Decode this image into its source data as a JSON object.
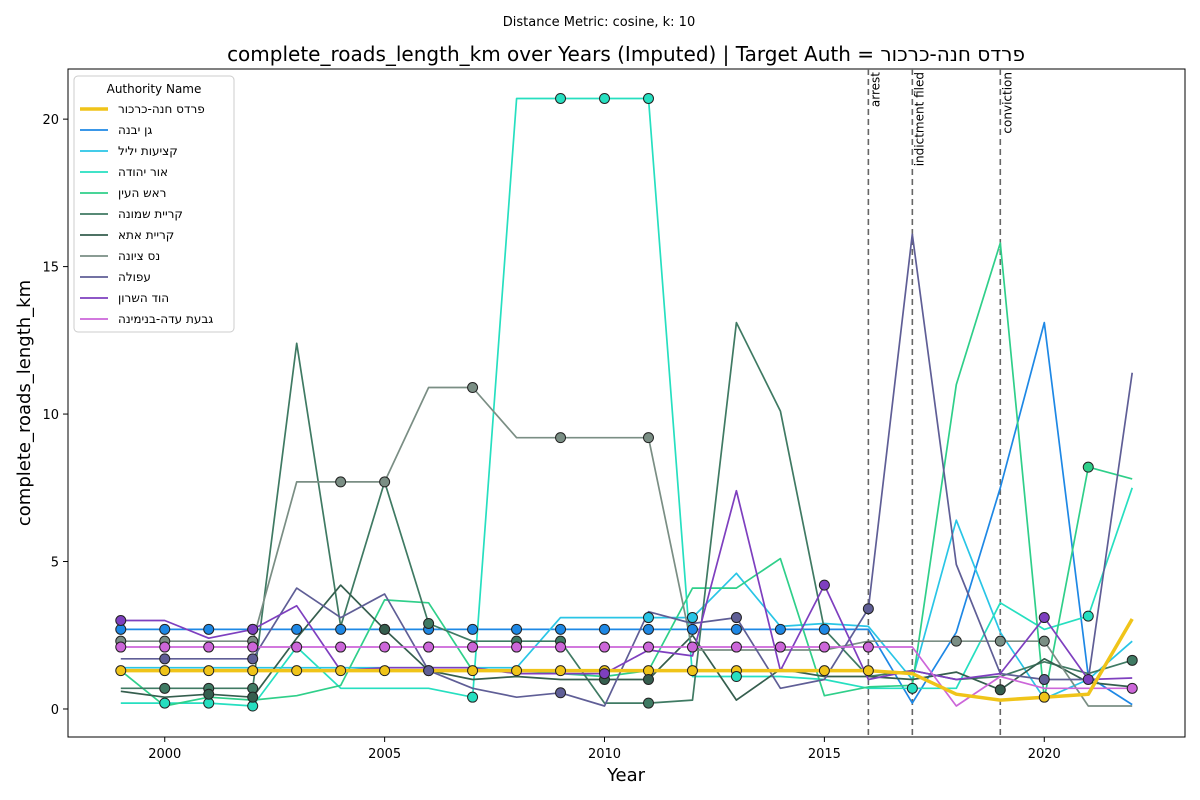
{
  "suptitle": "Distance Metric: cosine, k: 10",
  "chart_data": {
    "type": "line",
    "title": "complete_roads_length_km over Years (Imputed) | Target Auth = פרדס חנה-כרכור",
    "xlabel": "Year",
    "ylabel": "complete_roads_length_km",
    "xlim": [
      1997.8,
      2023.2
    ],
    "ylim": [
      -0.95,
      21.7
    ],
    "xticks": [
      2000,
      2005,
      2010,
      2015,
      2020
    ],
    "yticks": [
      0,
      5,
      10,
      15,
      20
    ],
    "x": [
      1999,
      2000,
      2001,
      2002,
      2003,
      2004,
      2005,
      2006,
      2007,
      2008,
      2009,
      2010,
      2011,
      2012,
      2013,
      2014,
      2015,
      2016,
      2017,
      2018,
      2019,
      2020,
      2021,
      2022
    ],
    "legend_title": "Authority Name",
    "legend_position": "upper left",
    "grid": false,
    "events": [
      {
        "x": 2016,
        "label": "arrest"
      },
      {
        "x": 2017,
        "label": "indictment filed"
      },
      {
        "x": 2019,
        "label": "conviction"
      }
    ],
    "series": [
      {
        "name": "פרדס חנה-כרכור",
        "color": "#f0c419",
        "target": true,
        "values": [
          1.3,
          1.3,
          1.3,
          1.3,
          1.3,
          1.3,
          1.3,
          1.3,
          1.3,
          1.3,
          1.3,
          1.3,
          1.3,
          1.3,
          1.3,
          1.3,
          1.3,
          1.3,
          1.2,
          0.5,
          0.3,
          0.4,
          0.5,
          3.05
        ],
        "markers": [
          1999,
          2000,
          2001,
          2002,
          2003,
          2004,
          2005,
          2006,
          2007,
          2008,
          2009,
          2010,
          2011,
          2012,
          2013,
          2015,
          2016,
          2020
        ]
      },
      {
        "name": "גן יבנה",
        "color": "#1e88e5",
        "values": [
          2.7,
          2.7,
          2.7,
          2.7,
          2.7,
          2.7,
          2.7,
          2.7,
          2.7,
          2.7,
          2.7,
          2.7,
          2.7,
          2.7,
          2.7,
          2.7,
          2.7,
          2.7,
          0.2,
          2.6,
          7.5,
          13.1,
          1.1,
          0.15
        ],
        "markers": [
          1999,
          2000,
          2001,
          2002,
          2003,
          2004,
          2005,
          2006,
          2007,
          2008,
          2009,
          2010,
          2011,
          2012,
          2013,
          2014,
          2015
        ]
      },
      {
        "name": "קציעות יליל",
        "color": "#29c5e6",
        "values": [
          1.4,
          1.4,
          1.4,
          1.4,
          1.4,
          1.4,
          1.4,
          1.4,
          1.4,
          1.4,
          3.1,
          3.1,
          3.1,
          3.1,
          4.6,
          2.8,
          2.9,
          2.8,
          1.0,
          6.4,
          2.6,
          0.35,
          1.0,
          2.3
        ],
        "markers": [
          2011,
          2012
        ]
      },
      {
        "name": "אור יהודה",
        "color": "#26dfc0",
        "values": [
          0.2,
          0.2,
          0.2,
          0.1,
          2.1,
          0.7,
          0.7,
          0.7,
          0.4,
          20.7,
          20.7,
          20.7,
          20.7,
          1.1,
          1.1,
          1.1,
          1.0,
          0.7,
          0.7,
          0.7,
          3.6,
          2.7,
          3.15,
          7.5
        ],
        "markers": [
          2000,
          2001,
          2002,
          2007,
          2009,
          2010,
          2011,
          2013,
          2017,
          2021
        ]
      },
      {
        "name": "ראש העין",
        "color": "#2fcf8a",
        "values": [
          1.3,
          0.1,
          0.4,
          0.3,
          0.45,
          0.8,
          3.7,
          3.6,
          1.3,
          1.3,
          1.2,
          1.1,
          1.3,
          4.1,
          4.1,
          5.1,
          0.45,
          0.75,
          0.8,
          11.0,
          15.8,
          0.35,
          8.2,
          7.8
        ],
        "markers": [
          2021
        ]
      },
      {
        "name": "קריית שמונה",
        "color": "#3f7a63",
        "values": [
          0.7,
          0.7,
          0.7,
          0.7,
          12.4,
          2.8,
          7.7,
          2.9,
          2.3,
          2.3,
          2.3,
          0.2,
          0.2,
          0.3,
          13.1,
          10.1,
          2.7,
          1.1,
          1.3,
          1.0,
          1.1,
          1.6,
          1.2,
          1.65
        ],
        "markers": [
          2000,
          2001,
          2002,
          2006,
          2008,
          2009,
          2011,
          2022
        ]
      },
      {
        "name": "קריית אתא",
        "color": "#355e4e",
        "values": [
          0.6,
          0.4,
          0.5,
          0.4,
          2.4,
          4.2,
          2.7,
          1.3,
          1.0,
          1.1,
          1.0,
          1.0,
          1.0,
          2.5,
          0.3,
          1.35,
          1.1,
          1.1,
          1.0,
          1.25,
          0.65,
          1.7,
          0.9,
          0.75
        ],
        "markers": [
          2001,
          2002,
          2005,
          2010,
          2011,
          2019
        ]
      },
      {
        "name": "נס ציונה",
        "color": "#7a8e84",
        "values": [
          2.3,
          2.3,
          2.3,
          2.3,
          7.7,
          7.7,
          7.7,
          10.9,
          10.9,
          9.2,
          9.2,
          9.2,
          9.2,
          2.0,
          2.0,
          2.0,
          2.0,
          2.3,
          2.3,
          2.3,
          2.3,
          2.3,
          0.1,
          0.1
        ],
        "markers": [
          1999,
          2000,
          2002,
          2004,
          2005,
          2007,
          2009,
          2011,
          2018,
          2019,
          2020
        ]
      },
      {
        "name": "עפולה",
        "color": "#5f5e96",
        "values": [
          1.7,
          1.7,
          1.7,
          1.7,
          4.1,
          3.1,
          3.9,
          1.3,
          0.7,
          0.4,
          0.55,
          0.1,
          3.3,
          2.9,
          3.1,
          0.7,
          1.0,
          3.4,
          16.1,
          4.9,
          1.2,
          1.0,
          1.0,
          11.4
        ],
        "markers": [
          2000,
          2002,
          2006,
          2009,
          2013,
          2016,
          2020
        ]
      },
      {
        "name": "הוד השרון",
        "color": "#7e3fbf",
        "values": [
          3.0,
          3.0,
          2.4,
          2.7,
          3.5,
          1.3,
          1.4,
          1.4,
          1.4,
          1.2,
          1.2,
          1.2,
          2.0,
          1.8,
          7.4,
          1.3,
          4.2,
          1.0,
          1.3,
          1.0,
          1.2,
          3.1,
          1.0,
          1.05
        ],
        "markers": [
          1999,
          2002,
          2010,
          2015,
          2020,
          2021
        ]
      },
      {
        "name": "גבעת עדה-בנימינה",
        "color": "#cc66d9",
        "values": [
          2.1,
          2.1,
          2.1,
          2.1,
          2.1,
          2.1,
          2.1,
          2.1,
          2.1,
          2.1,
          2.1,
          2.1,
          2.1,
          2.1,
          2.1,
          2.1,
          2.1,
          2.1,
          2.1,
          0.1,
          1.1,
          0.7,
          0.7,
          0.7
        ],
        "markers": [
          1999,
          2000,
          2001,
          2002,
          2003,
          2004,
          2005,
          2006,
          2007,
          2008,
          2009,
          2010,
          2011,
          2012,
          2013,
          2014,
          2015,
          2016,
          2022
        ]
      }
    ]
  }
}
